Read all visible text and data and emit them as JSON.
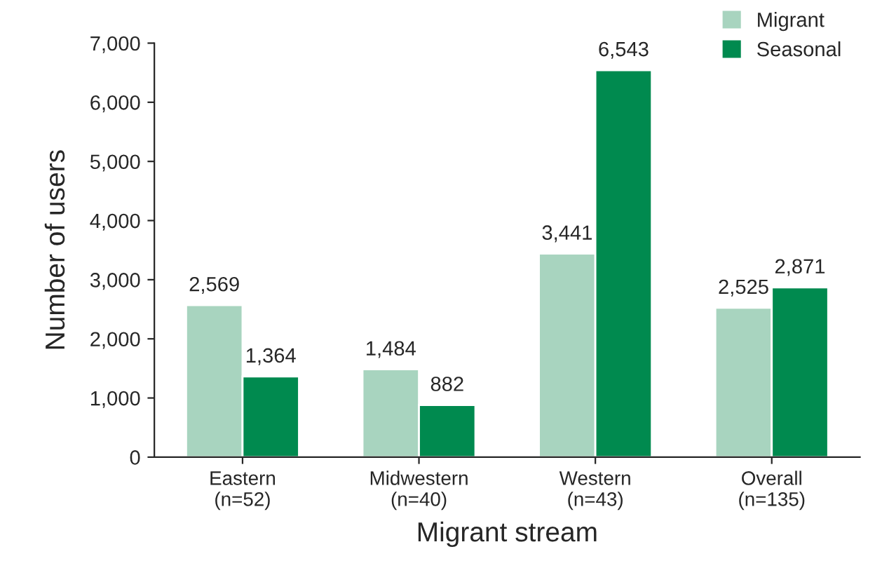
{
  "chart_data": {
    "type": "bar",
    "xlabel": "Migrant stream",
    "ylabel": "Number of users",
    "categories": [
      "Eastern\n(n=52)",
      "Midwestern\n(n=40)",
      "Western\n(n=43)",
      "Overall\n(n=135)"
    ],
    "series": [
      {
        "name": "Migrant",
        "color": "#a8d4bf",
        "values": [
          2569,
          1484,
          3441,
          2525
        ],
        "value_labels": [
          "2,569",
          "1,484",
          "3,441",
          "2,525"
        ]
      },
      {
        "name": "Seasonal",
        "color": "#008a4f",
        "values": [
          1364,
          882,
          6543,
          2871
        ],
        "value_labels": [
          "1,364",
          "882",
          "6,543",
          "2,871"
        ]
      }
    ],
    "ylim": [
      0,
      7000
    ],
    "yticks": [
      {
        "value": 0,
        "label": "0"
      },
      {
        "value": 1000,
        "label": "1,000"
      },
      {
        "value": 2000,
        "label": "2,000"
      },
      {
        "value": 3000,
        "label": "3,000"
      },
      {
        "value": 4000,
        "label": "4,000"
      },
      {
        "value": 5000,
        "label": "5,000"
      },
      {
        "value": 6000,
        "label": "6,000"
      },
      {
        "value": 7000,
        "label": "7,000"
      }
    ],
    "grid": false,
    "legend": "top right"
  }
}
